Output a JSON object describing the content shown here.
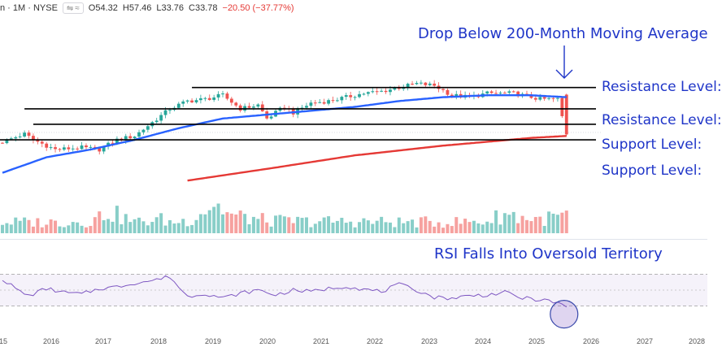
{
  "header": {
    "symbol": "n · 1M · NYSE",
    "toggle_icon": "toggle-icon",
    "wave_icon": "wave-icon",
    "open": "O54.32",
    "high": "H57.46",
    "low": "L33.76",
    "close": "C33.78",
    "change": "−20.50 (−37.77%)"
  },
  "annotations": {
    "drop": "Drop Below 200-Month Moving Average",
    "rsi": "RSI Falls Into Oversold Territory"
  },
  "levels": [
    {
      "label": "Resistance Level:",
      "kind": "resistance",
      "line_start": "2018-07"
    },
    {
      "label": "Resistance Level:",
      "kind": "resistance",
      "line_start": "2015-06"
    },
    {
      "label": "Support Level:",
      "kind": "support",
      "line_start": "2015-09"
    },
    {
      "label": "Support Level:",
      "kind": "support",
      "line_start": "2014-12"
    }
  ],
  "colors": {
    "up": "#26a69a",
    "down": "#ef5350",
    "ma_short": "#2962ff",
    "ma_long": "#e53935",
    "rsi": "#7e57c2",
    "annotation": "#1f35c8",
    "level_line": "#000000"
  },
  "chart_data": {
    "type": "candlestick",
    "timeframe": "1M",
    "x_ticks": [
      "15",
      "2016",
      "2017",
      "2018",
      "2019",
      "2020",
      "2021",
      "2022",
      "2023",
      "2024",
      "2025",
      "2026",
      "2027",
      "2028"
    ],
    "price_anchors": {
      "months": [
        0,
        5,
        7,
        12,
        18,
        22,
        26,
        30,
        34,
        38,
        42,
        46,
        50,
        54,
        58,
        60,
        64,
        66,
        70,
        74,
        78,
        82,
        86,
        90,
        94,
        98,
        102,
        106,
        110,
        114,
        116,
        118,
        122,
        126,
        128
      ],
      "closes": [
        30,
        34,
        31,
        26,
        27,
        26,
        31,
        33,
        40,
        47,
        51,
        52,
        54,
        47,
        49,
        42,
        48,
        45,
        50,
        51,
        53,
        55,
        56,
        58,
        60,
        59,
        54,
        53,
        55,
        55,
        55,
        54,
        52,
        52,
        34
      ]
    },
    "ma_short_anchors": {
      "months": [
        0,
        10,
        20,
        30,
        40,
        50,
        60,
        70,
        80,
        90,
        100,
        110,
        120,
        128
      ],
      "values": [
        14,
        22,
        26,
        31,
        37,
        42,
        44,
        46,
        48,
        51,
        53,
        54,
        54,
        53
      ]
    },
    "ma_long_anchors": {
      "months": [
        42,
        60,
        80,
        100,
        110,
        120,
        128
      ],
      "values": [
        10,
        16,
        23,
        28,
        30,
        32,
        33
      ]
    },
    "rsi_anchors": {
      "months": [
        0,
        4,
        6,
        10,
        14,
        18,
        22,
        26,
        30,
        34,
        38,
        40,
        42,
        46,
        50,
        54,
        58,
        62,
        66,
        70,
        74,
        78,
        82,
        86,
        90,
        94,
        98,
        102,
        106,
        110,
        114,
        118,
        122,
        126,
        128
      ],
      "values": [
        64,
        48,
        43,
        52,
        47,
        45,
        52,
        54,
        59,
        62,
        67,
        54,
        42,
        46,
        40,
        46,
        50,
        44,
        50,
        48,
        52,
        55,
        51,
        48,
        57,
        50,
        41,
        40,
        43,
        44,
        47,
        40,
        38,
        34,
        28
      ]
    },
    "volume_anchors": {
      "months": [
        0,
        12,
        20,
        24,
        30,
        36,
        38,
        42,
        48,
        52,
        60,
        70,
        80,
        90,
        100,
        110,
        114,
        118,
        122,
        128
      ],
      "values": [
        2.8,
        2.8,
        3.0,
        5.5,
        2.8,
        3.5,
        2.8,
        3.2,
        7.5,
        4.5,
        3.2,
        3.0,
        3.0,
        2.8,
        2.8,
        3.0,
        5.0,
        4.0,
        3.5,
        4.5
      ]
    },
    "levels": [
      58,
      47,
      39,
      31
    ],
    "rsi_zone": [
      30,
      70
    ]
  }
}
